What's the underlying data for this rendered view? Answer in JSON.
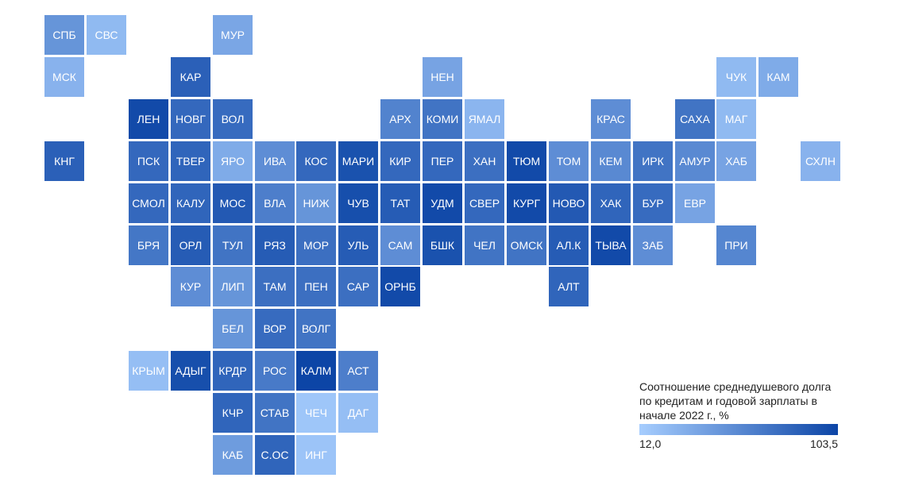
{
  "legend": {
    "title": "Соотношение среднедушевого долга по кредитам и годовой зарплаты в начале 2022 г., %",
    "min_label": "12,0",
    "max_label": "103,5",
    "min": 12.0,
    "max": 103.5,
    "color_low": "#a6cdfe",
    "color_high": "#0c45a6"
  },
  "regions": [
    {
      "label": "СПБ",
      "value": 50,
      "col": 0,
      "row": 0
    },
    {
      "label": "СВС",
      "value": 25,
      "col": 1,
      "row": 0
    },
    {
      "label": "МУР",
      "value": 38,
      "col": 4,
      "row": 0
    },
    {
      "label": "МСК",
      "value": 30,
      "col": 0,
      "row": 1
    },
    {
      "label": "КАР",
      "value": 85,
      "col": 3,
      "row": 1
    },
    {
      "label": "НЕН",
      "value": 40,
      "col": 9,
      "row": 1
    },
    {
      "label": "ЧУК",
      "value": 25,
      "col": 16,
      "row": 1
    },
    {
      "label": "КАМ",
      "value": 35,
      "col": 17,
      "row": 1
    },
    {
      "label": "ЛЕН",
      "value": 100,
      "col": 2,
      "row": 2
    },
    {
      "label": "НОВГ",
      "value": 80,
      "col": 3,
      "row": 2
    },
    {
      "label": "ВОЛ",
      "value": 78,
      "col": 4,
      "row": 2
    },
    {
      "label": "АРХ",
      "value": 62,
      "col": 8,
      "row": 2
    },
    {
      "label": "КОМИ",
      "value": 72,
      "col": 9,
      "row": 2
    },
    {
      "label": "ЯМАЛ",
      "value": 28,
      "col": 10,
      "row": 2
    },
    {
      "label": "КРАС",
      "value": 55,
      "col": 13,
      "row": 2
    },
    {
      "label": "САХА",
      "value": 72,
      "col": 15,
      "row": 2
    },
    {
      "label": "МАГ",
      "value": 25,
      "col": 16,
      "row": 2
    },
    {
      "label": "КНГ",
      "value": 85,
      "col": 0,
      "row": 3
    },
    {
      "label": "ПСК",
      "value": 80,
      "col": 2,
      "row": 3
    },
    {
      "label": "ТВЕР",
      "value": 82,
      "col": 3,
      "row": 3
    },
    {
      "label": "ЯРО",
      "value": 35,
      "col": 4,
      "row": 3
    },
    {
      "label": "ИВА",
      "value": 55,
      "col": 5,
      "row": 3
    },
    {
      "label": "КОС",
      "value": 80,
      "col": 6,
      "row": 3
    },
    {
      "label": "МАРИ",
      "value": 95,
      "col": 7,
      "row": 3
    },
    {
      "label": "КИР",
      "value": 80,
      "col": 8,
      "row": 3
    },
    {
      "label": "ПЕР",
      "value": 80,
      "col": 9,
      "row": 3
    },
    {
      "label": "ХАН",
      "value": 75,
      "col": 10,
      "row": 3
    },
    {
      "label": "ТЮМ",
      "value": 100,
      "col": 11,
      "row": 3
    },
    {
      "label": "ТОМ",
      "value": 55,
      "col": 12,
      "row": 3
    },
    {
      "label": "КЕМ",
      "value": 58,
      "col": 13,
      "row": 3
    },
    {
      "label": "ИРК",
      "value": 72,
      "col": 14,
      "row": 3
    },
    {
      "label": "АМУР",
      "value": 58,
      "col": 15,
      "row": 3
    },
    {
      "label": "ХАБ",
      "value": 40,
      "col": 16,
      "row": 3
    },
    {
      "label": "СХЛН",
      "value": 30,
      "col": 18,
      "row": 3
    },
    {
      "label": "СМОЛ",
      "value": 80,
      "col": 2,
      "row": 4
    },
    {
      "label": "КАЛУ",
      "value": 82,
      "col": 3,
      "row": 4
    },
    {
      "label": "МОС",
      "value": 90,
      "col": 4,
      "row": 4
    },
    {
      "label": "ВЛА",
      "value": 65,
      "col": 5,
      "row": 4
    },
    {
      "label": "НИЖ",
      "value": 50,
      "col": 6,
      "row": 4
    },
    {
      "label": "ЧУВ",
      "value": 97,
      "col": 7,
      "row": 4
    },
    {
      "label": "ТАТ",
      "value": 88,
      "col": 8,
      "row": 4
    },
    {
      "label": "УДМ",
      "value": 100,
      "col": 9,
      "row": 4
    },
    {
      "label": "СВЕР",
      "value": 80,
      "col": 10,
      "row": 4
    },
    {
      "label": "КУРГ",
      "value": 100,
      "col": 11,
      "row": 4
    },
    {
      "label": "НОВО",
      "value": 90,
      "col": 12,
      "row": 4
    },
    {
      "label": "ХАК",
      "value": 82,
      "col": 13,
      "row": 4
    },
    {
      "label": "БУР",
      "value": 78,
      "col": 14,
      "row": 4
    },
    {
      "label": "ЕВР",
      "value": 40,
      "col": 15,
      "row": 4
    },
    {
      "label": "БРЯ",
      "value": 70,
      "col": 2,
      "row": 5
    },
    {
      "label": "ОРЛ",
      "value": 88,
      "col": 3,
      "row": 5
    },
    {
      "label": "ТУЛ",
      "value": 72,
      "col": 4,
      "row": 5
    },
    {
      "label": "РЯЗ",
      "value": 88,
      "col": 5,
      "row": 5
    },
    {
      "label": "МОР",
      "value": 75,
      "col": 6,
      "row": 5
    },
    {
      "label": "УЛЬ",
      "value": 88,
      "col": 7,
      "row": 5
    },
    {
      "label": "САМ",
      "value": 55,
      "col": 8,
      "row": 5
    },
    {
      "label": "БШК",
      "value": 95,
      "col": 9,
      "row": 5
    },
    {
      "label": "ЧЕЛ",
      "value": 72,
      "col": 10,
      "row": 5
    },
    {
      "label": "ОМСК",
      "value": 72,
      "col": 11,
      "row": 5
    },
    {
      "label": "АЛ.К",
      "value": 88,
      "col": 12,
      "row": 5
    },
    {
      "label": "ТЫВА",
      "value": 100,
      "col": 13,
      "row": 5
    },
    {
      "label": "ЗАБ",
      "value": 55,
      "col": 14,
      "row": 5
    },
    {
      "label": "ПРИ",
      "value": 60,
      "col": 16,
      "row": 5
    },
    {
      "label": "КУР",
      "value": 55,
      "col": 3,
      "row": 6
    },
    {
      "label": "ЛИП",
      "value": 50,
      "col": 4,
      "row": 6
    },
    {
      "label": "ТАМ",
      "value": 75,
      "col": 5,
      "row": 6
    },
    {
      "label": "ПЕН",
      "value": 75,
      "col": 6,
      "row": 6
    },
    {
      "label": "САР",
      "value": 75,
      "col": 7,
      "row": 6
    },
    {
      "label": "ОРНБ",
      "value": 100,
      "col": 8,
      "row": 6
    },
    {
      "label": "АЛТ",
      "value": 82,
      "col": 12,
      "row": 6
    },
    {
      "label": "БЕЛ",
      "value": 50,
      "col": 4,
      "row": 7
    },
    {
      "label": "ВОР",
      "value": 78,
      "col": 5,
      "row": 7
    },
    {
      "label": "ВОЛГ",
      "value": 72,
      "col": 6,
      "row": 7
    },
    {
      "label": "КРЫМ",
      "value": 22,
      "col": 2,
      "row": 8
    },
    {
      "label": "АДЫГ",
      "value": 97,
      "col": 3,
      "row": 8
    },
    {
      "label": "КРДР",
      "value": 82,
      "col": 4,
      "row": 8
    },
    {
      "label": "РОС",
      "value": 68,
      "col": 5,
      "row": 8
    },
    {
      "label": "КАЛМ",
      "value": 103.5,
      "col": 6,
      "row": 8
    },
    {
      "label": "АСТ",
      "value": 65,
      "col": 7,
      "row": 8
    },
    {
      "label": "КЧР",
      "value": 82,
      "col": 4,
      "row": 9
    },
    {
      "label": "СТАВ",
      "value": 72,
      "col": 5,
      "row": 9
    },
    {
      "label": "ЧЕЧ",
      "value": 17,
      "col": 6,
      "row": 9
    },
    {
      "label": "ДАГ",
      "value": 22,
      "col": 7,
      "row": 9
    },
    {
      "label": "КАБ",
      "value": 45,
      "col": 4,
      "row": 10
    },
    {
      "label": "С.ОС",
      "value": 82,
      "col": 5,
      "row": 10
    },
    {
      "label": "ИНГ",
      "value": 18,
      "col": 6,
      "row": 10
    }
  ]
}
